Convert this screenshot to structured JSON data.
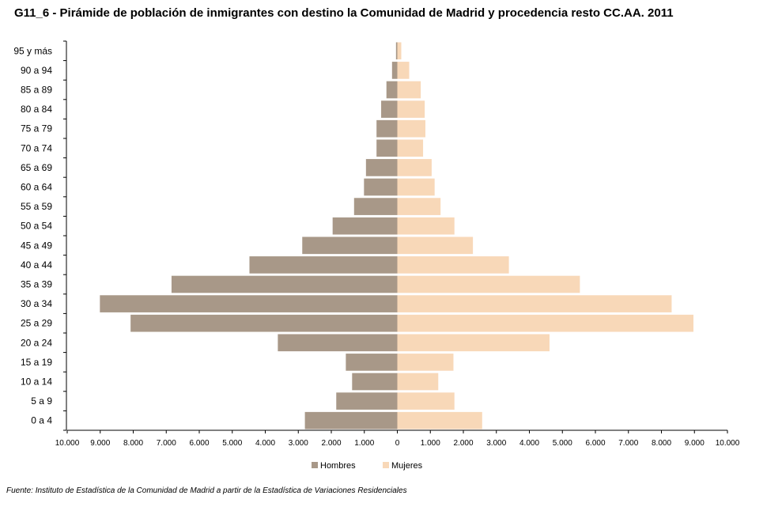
{
  "title": "G11_6 - Pirámide de población de inmigrantes con destino la Comunidad de Madrid y procedencia resto CC.AA.  2011",
  "source": "Fuente: Instituto de Estadística de la Comunidad de Madrid a partir de la Estadística de Variaciones Residenciales",
  "colors": {
    "hombres": "#a89888",
    "mujeres": "#f8d8b8"
  },
  "chart_data": {
    "type": "bar",
    "orientation": "horizontal",
    "layout": "population-pyramid",
    "categories": [
      "0 a 4",
      "5 a 9",
      "10 a 14",
      "15 a 19",
      "20 a 24",
      "25 a 29",
      "30 a 34",
      "35 a 39",
      "40 a 44",
      "45 a 49",
      "50 a 54",
      "55 a 59",
      "60 a 64",
      "65 a 69",
      "70 a 74",
      "75 a 79",
      "80 a 84",
      "85 a 89",
      "90 a 94",
      "95 y más"
    ],
    "series": [
      {
        "name": "Hombres",
        "color": "#a89888",
        "side": "left",
        "values": [
          2800,
          1850,
          1370,
          1560,
          3620,
          8080,
          9010,
          6840,
          4480,
          2880,
          1960,
          1310,
          1010,
          950,
          630,
          630,
          490,
          330,
          160,
          40
        ]
      },
      {
        "name": "Mujeres",
        "color": "#f8d8b8",
        "side": "right",
        "values": [
          2570,
          1730,
          1240,
          1700,
          4610,
          8970,
          8310,
          5530,
          3380,
          2290,
          1730,
          1310,
          1130,
          1040,
          780,
          850,
          830,
          710,
          360,
          120
        ]
      }
    ],
    "x_ticks": [
      "10.000",
      "9.000",
      "8.000",
      "7.000",
      "6.000",
      "5.000",
      "4.000",
      "3.000",
      "2.000",
      "1.000",
      "0",
      "1.000",
      "2.000",
      "3.000",
      "4.000",
      "5.000",
      "6.000",
      "7.000",
      "8.000",
      "9.000",
      "10.000"
    ],
    "xlim": [
      -10000,
      10000
    ],
    "grid": false,
    "legend": "bottom-center"
  }
}
